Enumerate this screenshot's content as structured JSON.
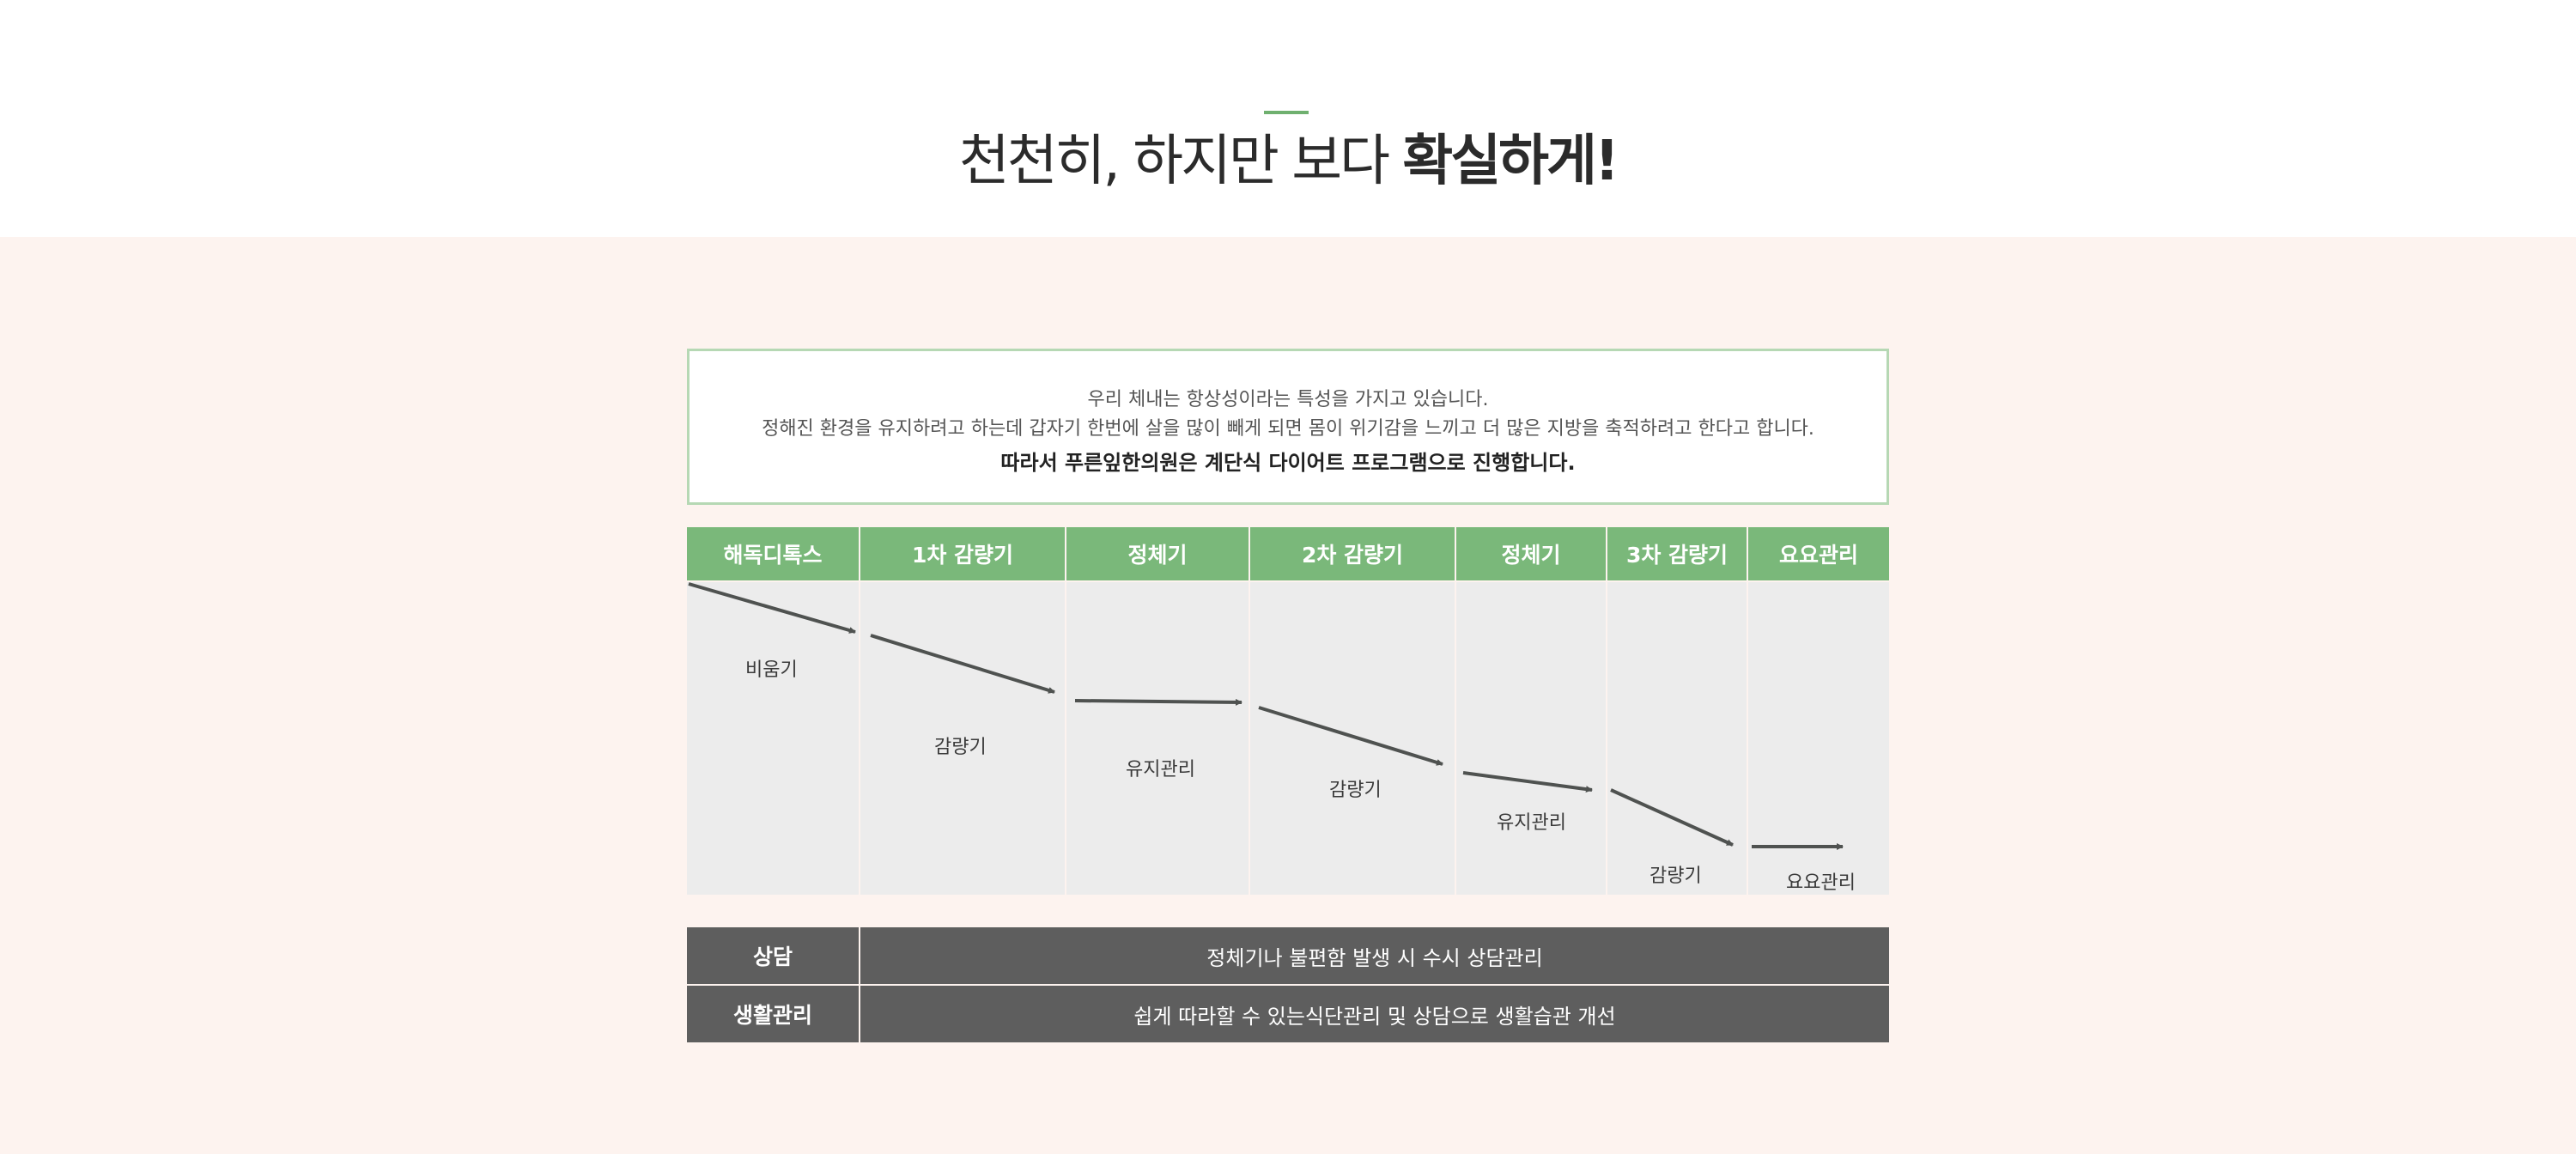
{
  "header": {
    "headline_light": "천천히, 하지만 보다 ",
    "headline_bold": "확실하게!"
  },
  "intro": {
    "line1": "우리 체내는 항상성이라는 특성을 가지고 있습니다.",
    "line2": "정해진 환경을 유지하려고 하는데 갑자기 한번에 살을 많이 빼게 되면 몸이 위기감을 느끼고 더 많은 지방을 축적하려고 한다고 합니다.",
    "line3": "따라서 푸른잎한의원은 계단식 다이어트 프로그램으로 진행합니다."
  },
  "phases": [
    {
      "header": "해독디톡스",
      "label": "비움기"
    },
    {
      "header": "1차 감량기",
      "label": "감량기"
    },
    {
      "header": "정체기",
      "label": "유지관리"
    },
    {
      "header": "2차 감량기",
      "label": "감량기"
    },
    {
      "header": "정체기",
      "label": "유지관리"
    },
    {
      "header": "3차 감량기",
      "label": "감량기"
    },
    {
      "header": "요요관리",
      "label": "요요관리"
    }
  ],
  "rows": [
    {
      "label": "상담",
      "text": "정체기나 불편함 발생 시 수시 상담관리"
    },
    {
      "label": "생활관리",
      "text": "쉽게 따라할 수 있는식단관리 및 상담으로 생활습관 개선"
    }
  ],
  "colors": {
    "phase_header": "#7ab87a",
    "arrow": "#4f5250",
    "row_background": "#5e5e5e"
  }
}
